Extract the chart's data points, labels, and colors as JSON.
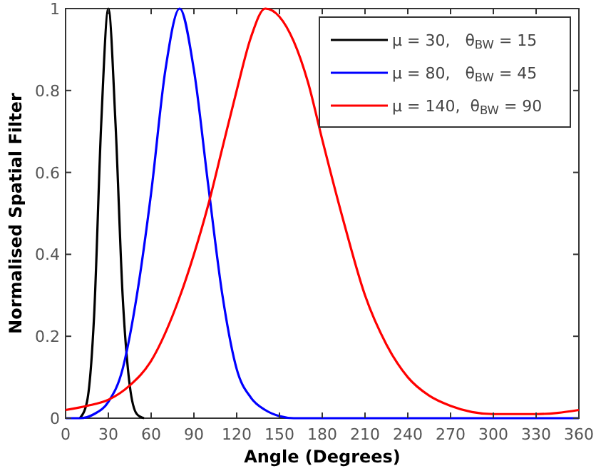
{
  "chart_data": {
    "type": "line",
    "xlabel": "Angle (Degrees)",
    "ylabel": "Normalised Spatial Filter",
    "xlim": [
      0,
      360
    ],
    "xticks": [
      0,
      30,
      60,
      90,
      120,
      150,
      180,
      210,
      240,
      270,
      300,
      330,
      360
    ],
    "ylim": [
      0,
      1
    ],
    "yticks": [
      0,
      0.2,
      0.4,
      0.6,
      0.8,
      1
    ],
    "grid": false,
    "legend": "top right",
    "line_style": "solid",
    "series": [
      {
        "name": "μ = 30,   θ$_{BW}$ = 15",
        "color": "#000000",
        "x": [
          10,
          15,
          20,
          25,
          30,
          35,
          40,
          45,
          50,
          55
        ],
        "values": [
          0,
          0.04,
          0.25,
          0.72,
          1,
          0.72,
          0.3,
          0.08,
          0.01,
          0
        ]
      },
      {
        "name": "μ = 80,   θ$_{BW}$ = 45",
        "color": "#0000ff",
        "x": [
          0,
          10,
          20,
          30,
          40,
          45,
          50,
          60,
          70,
          80,
          90,
          100,
          110,
          120,
          130,
          140,
          150,
          160,
          360
        ],
        "values": [
          0,
          0,
          0.01,
          0.04,
          0.12,
          0.2,
          0.3,
          0.55,
          0.85,
          1,
          0.85,
          0.57,
          0.3,
          0.12,
          0.05,
          0.02,
          0.005,
          0,
          0
        ]
      },
      {
        "name": "μ = 140,  θ$_{BW}$ = 90",
        "color": "#ff0000",
        "x": [
          0,
          15,
          30,
          45,
          60,
          75,
          90,
          100,
          110,
          120,
          130,
          140,
          150,
          160,
          170,
          180,
          195,
          210,
          225,
          240,
          255,
          270,
          285,
          300,
          330,
          345,
          360
        ],
        "values": [
          0.02,
          0.03,
          0.045,
          0.08,
          0.14,
          0.25,
          0.4,
          0.52,
          0.66,
          0.8,
          0.93,
          1,
          0.98,
          0.92,
          0.82,
          0.68,
          0.48,
          0.3,
          0.18,
          0.1,
          0.055,
          0.03,
          0.015,
          0.01,
          0.01,
          0.013,
          0.02
        ]
      }
    ]
  }
}
